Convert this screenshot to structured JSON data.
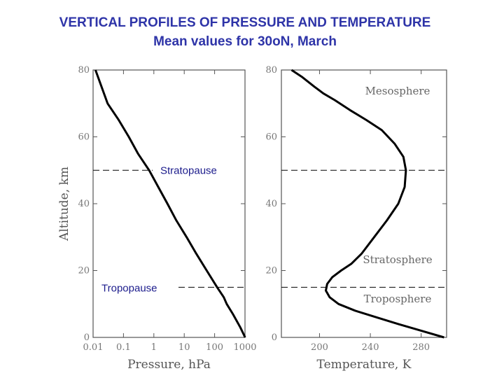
{
  "title": "VERTICAL PROFILES OF PRESSURE AND TEMPERATURE",
  "subtitle": "Mean values for 30oN, March",
  "colors": {
    "title": "#2e34a8",
    "curve": "#000000",
    "annotation": "#1c1c8c",
    "axis": "#555555"
  },
  "chart_data": [
    {
      "type": "line",
      "xlabel": "Pressure, hPa",
      "ylabel": "Altitude, km",
      "x_scale": "log",
      "xlim": [
        0.01,
        1000
      ],
      "ylim": [
        0,
        80
      ],
      "x_ticks": [
        0.01,
        0.1,
        1,
        10,
        100,
        1000
      ],
      "x_tick_labels": [
        "0.01",
        "0.1",
        "1",
        "10",
        "100",
        "1000"
      ],
      "y_ticks": [
        0,
        20,
        40,
        60,
        80
      ],
      "y_tick_labels": [
        "0",
        "20",
        "40",
        "60",
        "80"
      ],
      "grid": false,
      "series": [
        {
          "x": [
            1013,
            700,
            400,
            250,
            200,
            121,
            55,
            25,
            12,
            5.5,
            2.8,
            1.4,
            0.7,
            0.3,
            0.15,
            0.07,
            0.03,
            0.012
          ],
          "y": [
            0,
            3,
            7,
            10,
            12,
            15,
            20,
            25,
            30,
            35,
            40,
            45,
            50,
            55,
            60,
            65,
            70,
            80
          ]
        }
      ],
      "reference_lines": [
        {
          "y": 50,
          "label": "Stratopause"
        },
        {
          "y": 15,
          "label": "Tropopause"
        }
      ]
    },
    {
      "type": "line",
      "xlabel": "Temperature, K",
      "ylabel": "",
      "xlim": [
        170,
        300
      ],
      "ylim": [
        0,
        80
      ],
      "x_ticks": [
        200,
        240,
        280
      ],
      "x_tick_labels": [
        "200",
        "240",
        "280"
      ],
      "y_ticks": [
        0,
        20,
        40,
        60,
        80
      ],
      "y_tick_labels": [
        "0",
        "20",
        "40",
        "60",
        "80"
      ],
      "grid": false,
      "series": [
        {
          "x": [
            298,
            280,
            262,
            245,
            228,
            215,
            208,
            205,
            206,
            210,
            217,
            225,
            233,
            243,
            253,
            262,
            267,
            268,
            266,
            259,
            249,
            237,
            224,
            212,
            203,
            196,
            186,
            178
          ],
          "y": [
            0,
            2,
            4,
            6,
            8,
            10,
            12,
            14,
            16,
            18,
            20,
            22,
            25,
            30,
            35,
            40,
            45,
            50,
            54,
            58,
            62,
            65,
            68,
            71,
            73,
            75,
            78,
            80
          ]
        }
      ],
      "reference_lines": [
        {
          "y": 50
        },
        {
          "y": 15
        }
      ],
      "region_labels": [
        {
          "text": "Mesosphere"
        },
        {
          "text": "Stratosphere"
        },
        {
          "text": "Troposphere"
        }
      ]
    }
  ]
}
